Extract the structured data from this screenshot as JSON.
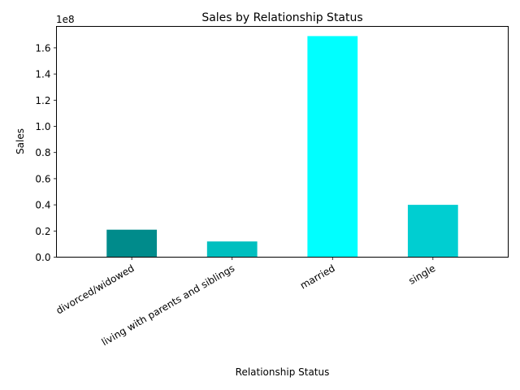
{
  "chart_data": {
    "type": "bar",
    "title": "Sales by Relationship Status",
    "xlabel": "Relationship Status",
    "ylabel": "Sales",
    "y_multiplier_label": "1e8",
    "y_scale": 100000000,
    "ylim": [
      0,
      176400000
    ],
    "y_ticks": [
      0,
      20000000,
      40000000,
      60000000,
      80000000,
      100000000,
      120000000,
      140000000,
      160000000
    ],
    "y_tick_labels": [
      "0.0",
      "0.2",
      "0.4",
      "0.6",
      "0.8",
      "1.0",
      "1.2",
      "1.4",
      "1.6"
    ],
    "categories": [
      "divorced/widowed",
      "living with parents and siblings",
      "married",
      "single"
    ],
    "values": [
      21000000,
      12000000,
      169000000,
      40000000
    ],
    "colors": [
      "#008b8b",
      "#00bfbf",
      "#00ffff",
      "#00ced1"
    ],
    "grid": false,
    "legend": false
  }
}
